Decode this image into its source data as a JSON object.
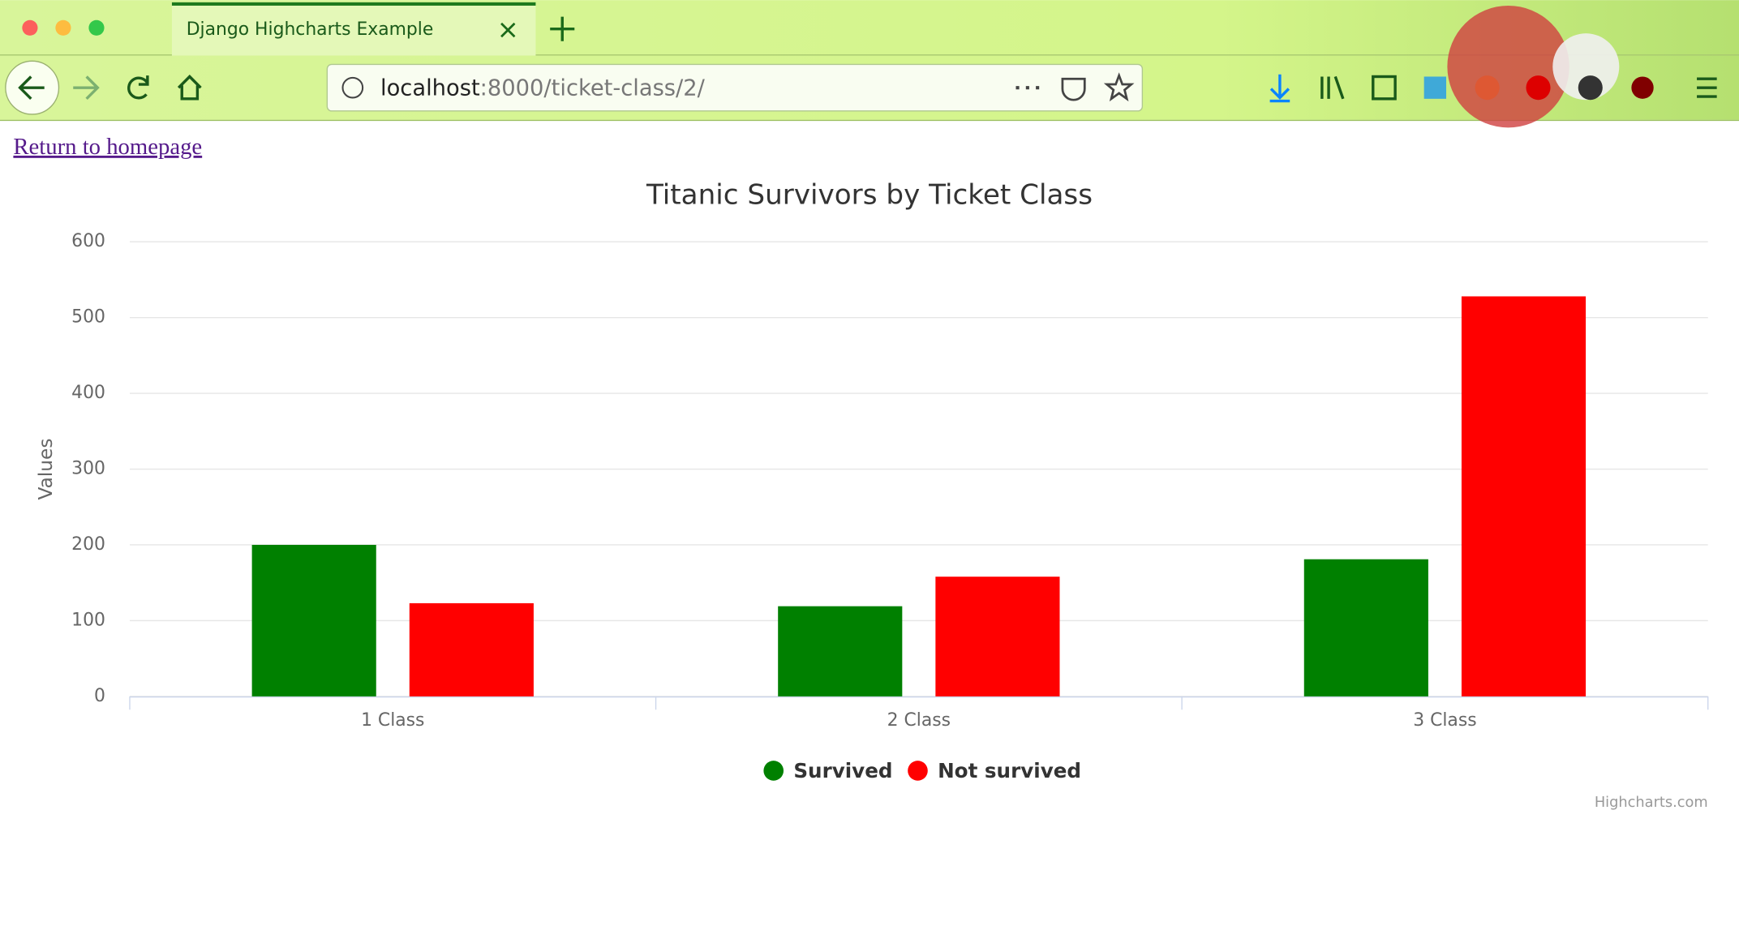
{
  "browser": {
    "tab_title": "Django Highcharts Example",
    "url_host": "localhost",
    "url_path": ":8000/ticket-class/2/"
  },
  "page": {
    "link": "Return to homepage"
  },
  "chart_data": {
    "type": "bar",
    "title": "Titanic Survivors by Ticket Class",
    "y_label": "Values",
    "categories": [
      "1 Class",
      "2 Class",
      "3 Class"
    ],
    "series": [
      {
        "name": "Survived",
        "color": "#008000",
        "values": [
          200,
          119,
          181
        ]
      },
      {
        "name": "Not survived",
        "color": "#ff0000",
        "values": [
          123,
          158,
          528
        ]
      }
    ],
    "ylim": [
      0,
      600
    ],
    "yticks": [
      0,
      100,
      200,
      300,
      400,
      500,
      600
    ],
    "grid": true,
    "legend": "bottom",
    "credits": "Highcharts.com"
  }
}
